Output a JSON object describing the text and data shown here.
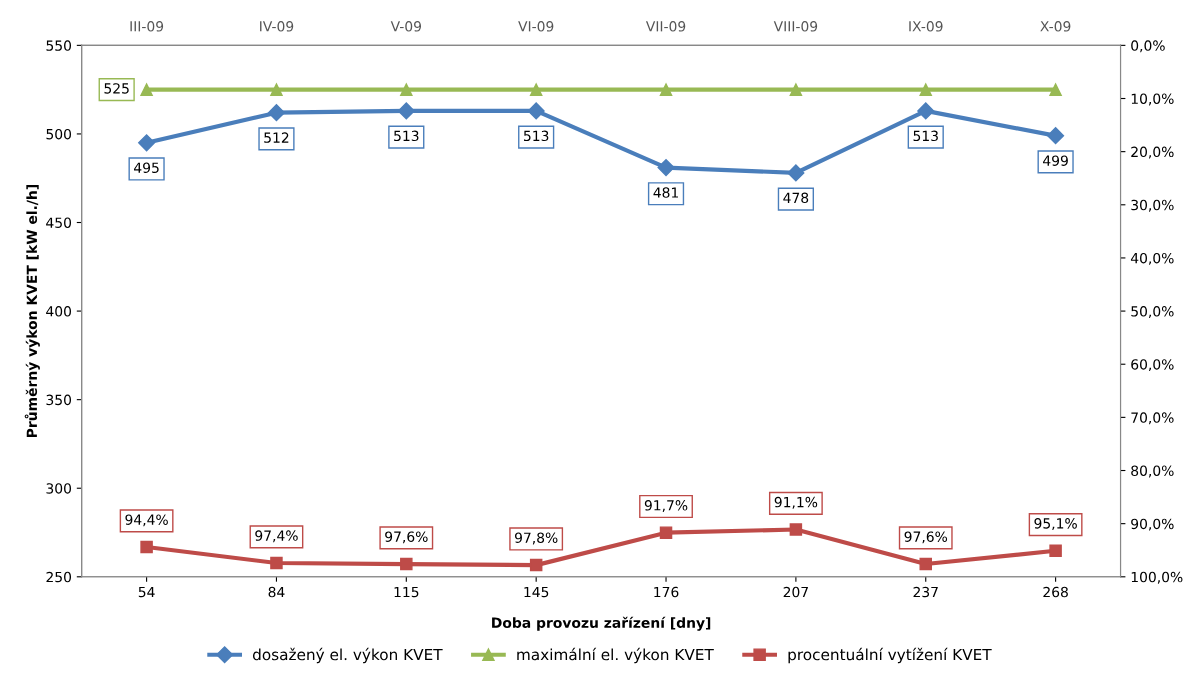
{
  "chart_data": {
    "type": "line",
    "xlabel": "Doba provozu zařízení [dny]",
    "ylabel": "Průměrný výkon KVET [kW el./h]",
    "categories": [
      "54",
      "84",
      "115",
      "145",
      "176",
      "207",
      "237",
      "268"
    ],
    "annotations": [
      "III-09",
      "IV-09",
      "V-09",
      "VI-09",
      "VII-09",
      "VIII-09",
      "IX-09",
      "X-09"
    ],
    "ylim": [
      250,
      550
    ],
    "yticks": [
      250,
      300,
      350,
      400,
      450,
      500,
      550
    ],
    "y2lim": [
      100,
      0
    ],
    "y2ticks": [
      {
        "value": 0,
        "label": "0,0%"
      },
      {
        "value": 10,
        "label": "10,0%"
      },
      {
        "value": 20,
        "label": "20,0%"
      },
      {
        "value": 30,
        "label": "30,0%"
      },
      {
        "value": 40,
        "label": "40,0%"
      },
      {
        "value": 50,
        "label": "50,0%"
      },
      {
        "value": 60,
        "label": "60,0%"
      },
      {
        "value": 70,
        "label": "70,0%"
      },
      {
        "value": 80,
        "label": "80,0%"
      },
      {
        "value": 90,
        "label": "90,0%"
      },
      {
        "value": 100,
        "label": "100,0%"
      }
    ],
    "grid": false,
    "legend": "bottom",
    "series": [
      {
        "name": "dosažený el. výkon KVET",
        "color": "#4a7ebb",
        "marker": "diamond",
        "values": [
          495,
          512,
          513,
          513,
          481,
          478,
          513,
          499
        ],
        "value_labels": [
          "495",
          "512",
          "513",
          "513",
          "481",
          "478",
          "513",
          "499"
        ]
      },
      {
        "name": "maximální el. výkon KVET",
        "color": "#98b954",
        "marker": "triangle",
        "values": [
          525,
          525,
          525,
          525,
          525,
          525,
          525,
          525
        ],
        "value_labels": [
          "525",
          null,
          null,
          null,
          null,
          null,
          null,
          null
        ]
      },
      {
        "name": "procentuální vytížení KVET",
        "color": "#be4b48",
        "marker": "square",
        "axis": "y2",
        "values": [
          94.4,
          97.4,
          97.6,
          97.8,
          91.7,
          91.1,
          97.6,
          95.1
        ],
        "value_labels": [
          "94,4%",
          "97,4%",
          "97,6%",
          "97,8%",
          "91,7%",
          "91,1%",
          "97,6%",
          "95,1%"
        ]
      }
    ]
  }
}
